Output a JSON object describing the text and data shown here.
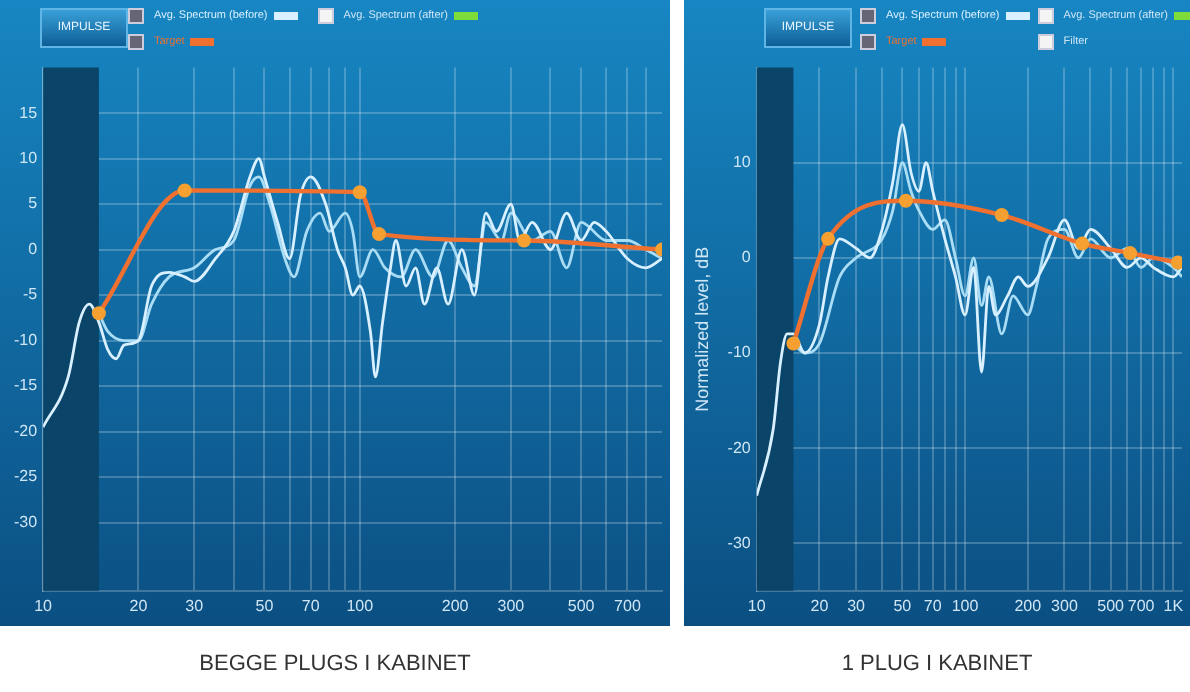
{
  "chart_data": [
    {
      "type": "line",
      "title": "BEGGE PLUGS I KABINET",
      "annotations": [
        "IMPULSE",
        "Avg. Spectrum (after)"
      ],
      "log": "x",
      "grid": true,
      "legend": "top",
      "xlim": [
        10,
        900
      ],
      "xticks": [
        10,
        20,
        30,
        {
          "value": 40,
          "label": null
        },
        50,
        {
          "value": 60,
          "label": null
        },
        70,
        {
          "value": 80,
          "label": null
        },
        {
          "value": 90,
          "label": null
        },
        100,
        200,
        300,
        {
          "value": 400,
          "label": null
        },
        500,
        {
          "value": 600,
          "label": null
        },
        700,
        {
          "value": 800,
          "label": null
        }
      ],
      "ylim": [
        -37.5,
        20
      ],
      "yticks": [
        -30,
        -25,
        -20,
        -15,
        -10,
        -5,
        0,
        5,
        10,
        15
      ],
      "bands": [
        {
          "axis": "x",
          "from": 10,
          "to": 15,
          "color": "#0a4468"
        }
      ],
      "series": [
        {
          "name": "Avg. Spectrum (before)",
          "color": "#d8f0ff",
          "x": [
            10,
            12,
            13,
            14,
            15,
            16,
            17,
            18,
            20,
            22,
            25,
            28,
            30,
            35,
            40,
            45,
            48,
            50,
            55,
            60,
            65,
            70,
            78,
            85,
            90,
            95,
            100,
            108,
            112,
            118,
            125,
            130,
            140,
            150,
            160,
            175,
            190,
            210,
            230,
            250,
            270,
            300,
            320,
            350,
            400,
            450,
            500,
            550,
            600,
            700,
            800,
            900
          ],
          "values": [
            -19.5,
            -14,
            -8,
            -6,
            -8,
            -11,
            -12,
            -10.5,
            -10,
            -4,
            -2.5,
            -3,
            -3.5,
            -1,
            2,
            8,
            10,
            8,
            3,
            -1,
            6,
            8,
            5,
            0,
            -2,
            -5,
            -4,
            -9,
            -14,
            -8,
            -2,
            1,
            -4,
            -2,
            -6,
            -2,
            -6,
            0,
            -5,
            4,
            2,
            5,
            1,
            3,
            0,
            4,
            1,
            3,
            2,
            -1,
            -2,
            -1
          ]
        },
        {
          "color": "#a9dcf5",
          "x": [
            15,
            16,
            18,
            20,
            22,
            25,
            30,
            35,
            40,
            45,
            48,
            52,
            58,
            62,
            68,
            75,
            80,
            90,
            95,
            100,
            110,
            120,
            135,
            150,
            170,
            190,
            210,
            230,
            250,
            280,
            300,
            350,
            400,
            450,
            500,
            600,
            700,
            800,
            900
          ],
          "values": [
            -7,
            -9,
            -10,
            -10,
            -6,
            -3,
            -2,
            0,
            1,
            7,
            8,
            5,
            -1,
            -3,
            2,
            4,
            2,
            4,
            2,
            -3,
            0,
            -2,
            -3,
            0,
            -3,
            1,
            -2,
            -4,
            3,
            1,
            4,
            1,
            2,
            -2,
            3,
            1,
            1,
            0,
            -1
          ]
        },
        {
          "name": "Target",
          "color": "#f07030",
          "marker": "circle",
          "x": [
            15,
            28,
            100,
            115,
            330,
            900
          ],
          "values": [
            -7,
            6.5,
            6.3,
            1.7,
            1,
            0
          ]
        }
      ]
    },
    {
      "type": "line",
      "title": "1 PLUG I KABINET",
      "ylabel": "Normalized level, dB",
      "annotations": [
        "IMPULSE",
        "Avg. Spectrum (after)",
        "Filter"
      ],
      "log": "x",
      "grid": true,
      "legend": "top",
      "xlim": [
        10,
        1100
      ],
      "xticks": [
        10,
        20,
        30,
        {
          "value": 40,
          "label": null
        },
        50,
        {
          "value": 60,
          "label": null
        },
        70,
        {
          "value": 80,
          "label": null
        },
        {
          "value": 90,
          "label": null
        },
        100,
        200,
        300,
        {
          "value": 400,
          "label": null
        },
        500,
        {
          "value": 600,
          "label": null
        },
        700,
        {
          "value": 800,
          "label": null
        },
        {
          "value": 900,
          "label": null
        },
        {
          "value": 1000,
          "label": "1K"
        }
      ],
      "ylim": [
        -35,
        20
      ],
      "yticks": [
        -30,
        -20,
        -10,
        0,
        10
      ],
      "bands": [
        {
          "axis": "x",
          "from": 10,
          "to": 15,
          "color": "#0a4468"
        }
      ],
      "series": [
        {
          "name": "Avg. Spectrum (before)",
          "color": "#d8f0ff",
          "x": [
            10,
            12,
            13,
            14,
            15,
            17,
            20,
            22,
            25,
            30,
            35,
            40,
            45,
            50,
            55,
            60,
            65,
            70,
            80,
            90,
            100,
            110,
            120,
            130,
            140,
            160,
            180,
            200,
            250,
            300,
            350,
            400,
            500,
            600,
            700,
            800,
            1000,
            1100
          ],
          "values": [
            -25,
            -18,
            -11,
            -8,
            -8,
            -10,
            -7,
            -2,
            2,
            1,
            0,
            3,
            8,
            14,
            9,
            7,
            10,
            7,
            2,
            -2,
            -6,
            -1,
            -12,
            -3,
            -6,
            -4,
            -2,
            -3,
            0,
            4,
            1,
            3,
            1,
            -1,
            0,
            -1,
            -2,
            -1
          ]
        },
        {
          "color": "#a9dcf5",
          "x": [
            15,
            17,
            20,
            25,
            30,
            40,
            45,
            50,
            55,
            60,
            70,
            80,
            90,
            100,
            110,
            120,
            130,
            150,
            170,
            200,
            220,
            250,
            300,
            350,
            400,
            500,
            600,
            700,
            800,
            1000,
            1100
          ],
          "values": [
            -9,
            -10,
            -9,
            -2,
            0,
            2,
            5,
            10,
            7,
            5,
            3,
            4,
            0,
            -4,
            0,
            -5,
            -2,
            -8,
            -4,
            -6,
            -3,
            2,
            3,
            0,
            2,
            0,
            1,
            -1,
            0,
            -1,
            -2
          ]
        },
        {
          "name": "Target",
          "color": "#f07030",
          "marker": "circle",
          "x": [
            15,
            22,
            52,
            150,
            365,
            620,
            1050
          ],
          "values": [
            -9,
            2,
            6,
            4.5,
            1.5,
            0.5,
            -0.5
          ]
        }
      ]
    }
  ]
}
